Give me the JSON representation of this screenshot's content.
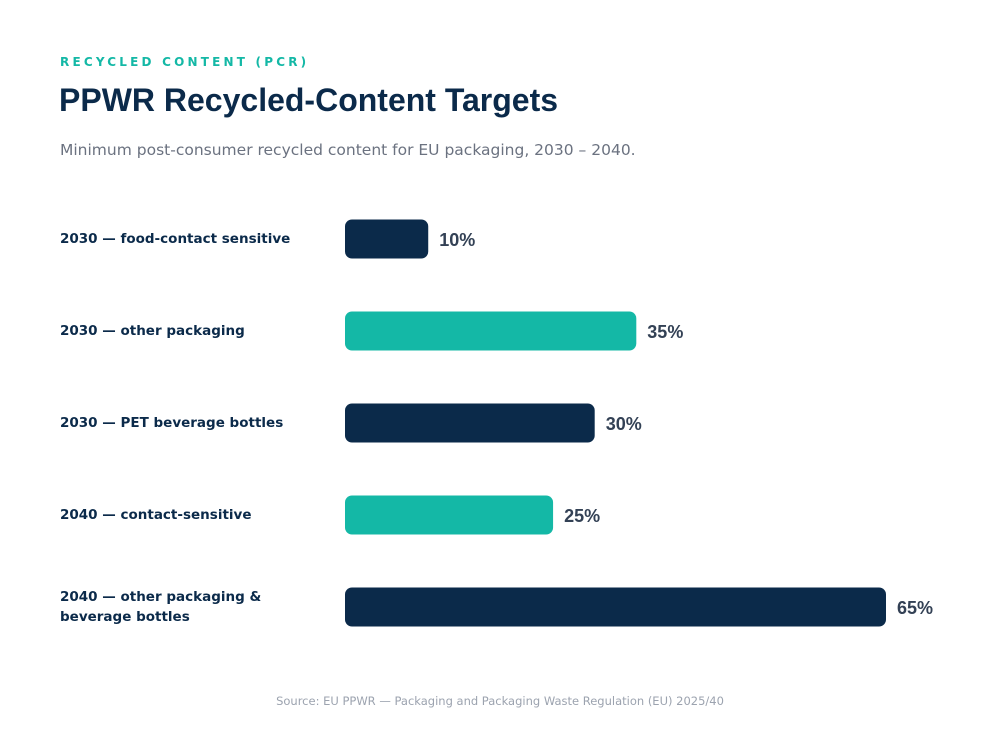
{
  "header": {
    "eyebrow": "RECYCLED CONTENT (PCR)",
    "title": "PPWR Recycled-Content Targets",
    "subtitle": "Minimum post-consumer recycled content for EU packaging, 2030 – 2040."
  },
  "chart_data": {
    "type": "bar",
    "orientation": "horizontal",
    "categories": [
      "2030 — food-contact sensitive",
      "2030 — other packaging",
      "2030 — PET beverage bottles",
      "2040 — contact-sensitive",
      "2040 — other packaging & beverage bottles"
    ],
    "values": [
      10,
      35,
      30,
      25,
      65
    ],
    "value_labels": [
      "10%",
      "35%",
      "30%",
      "25%",
      "65%"
    ],
    "unit": "%",
    "bar_colors": [
      "#0b2a4a",
      "#14b8a6",
      "#0b2a4a",
      "#14b8a6",
      "#0b2a4a"
    ],
    "xlim": [
      0,
      65
    ],
    "grid": false,
    "legend": "none"
  },
  "footer": {
    "source": "Source: EU PPWR — Packaging and Packaging Waste Regulation (EU) 2025/40"
  },
  "colors": {
    "navy": "#0b2a4a",
    "teal": "#14b8a6",
    "label": "#0b2a4a",
    "value_text": "#334155"
  }
}
